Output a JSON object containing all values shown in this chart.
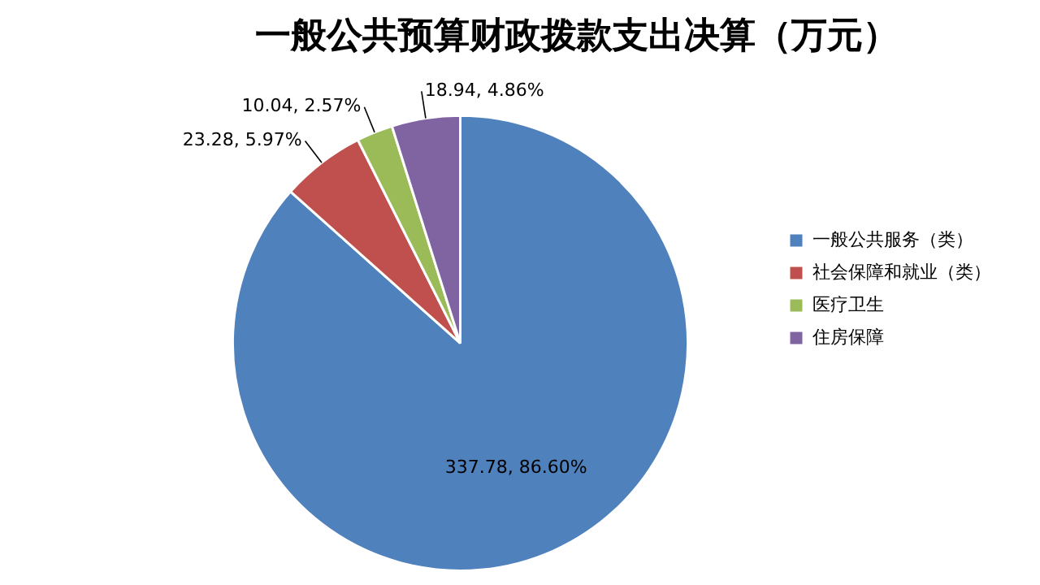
{
  "chart_data": {
    "type": "pie",
    "title": "一般公共预算财政拨款支出决算（万元）",
    "categories": [
      "一般公共服务（类）",
      "社会保障和就业（类）",
      "医疗卫生",
      "住房保障"
    ],
    "values": [
      337.78,
      23.28,
      10.04,
      18.94
    ],
    "colors": [
      "#4f81bd",
      "#c0504d",
      "#9bbb59",
      "#8064a2"
    ],
    "value_labels": [
      "337.78, 86.60%",
      "23.28, 5.97%",
      "10.04, 2.57%",
      "18.94, 4.86%"
    ],
    "legend": "right"
  }
}
